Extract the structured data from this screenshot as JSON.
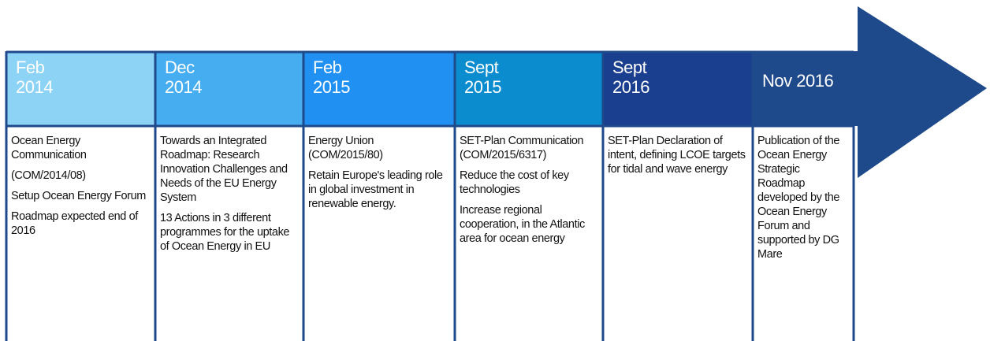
{
  "timeline": [
    {
      "date": [
        "Feb",
        "2014"
      ],
      "items": [
        "Ocean Energy Communication",
        "(COM/2014/08)",
        "Setup Ocean Energy Forum",
        "Roadmap expected end of 2016"
      ]
    },
    {
      "date": [
        "Dec",
        "2014"
      ],
      "items": [
        "Towards an Integrated Roadmap: Research Innovation Challenges and Needs of the EU Energy System",
        "13 Actions in 3 different programmes for the uptake of Ocean Energy in EU"
      ]
    },
    {
      "date": [
        "Feb",
        "2015"
      ],
      "items": [
        "Energy Union (COM/2015/80)",
        "Retain Europe's leading role in global investment in renewable energy."
      ]
    },
    {
      "date": [
        "Sept",
        "2015"
      ],
      "items": [
        "SET-Plan Communication (COM/2015/6317)",
        "Reduce the cost of key technologies",
        "Increase regional cooperation, in the Atlantic area for ocean energy"
      ]
    },
    {
      "date": [
        "Sept",
        "2016"
      ],
      "items": [
        "SET-Plan Declaration of intent, defining LCOE targets for tidal and wave energy"
      ]
    },
    {
      "date": [
        "Nov 2016"
      ],
      "items": [
        "Publication of the Ocean Energy Strategic Roadmap developed by the Ocean Energy Forum and supported by DG Mare"
      ]
    }
  ]
}
